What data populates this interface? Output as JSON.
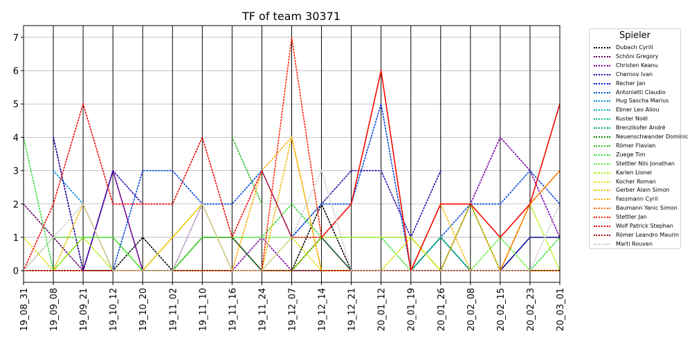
{
  "chart_data": {
    "type": "line",
    "title": "TF of team 30371",
    "xlabel": "",
    "ylabel": "",
    "ylim": [
      -0.35,
      7.35
    ],
    "yticks": [
      0,
      1,
      2,
      3,
      4,
      5,
      6,
      7
    ],
    "grid": true,
    "legend_title": "Spieler",
    "legend_position": "outside-right",
    "x": [
      "19_08_31",
      "19_09_08",
      "19_09_21",
      "19_10_12",
      "19_10_20",
      "19_11_02",
      "19_11_10",
      "19_11_16",
      "19_11_24",
      "19_12_07",
      "19_12_14",
      "19_12_21",
      "20_01_12",
      "20_01_19",
      "20_01_26",
      "20_02_08",
      "20_02_15",
      "20_02_23",
      "20_03_01"
    ],
    "series": [
      {
        "name": "Dubach Cyrill",
        "color": "#000000",
        "values": [
          null,
          4,
          0,
          0,
          1,
          0,
          1,
          1,
          0,
          0,
          2,
          0,
          0,
          0,
          0,
          0,
          0,
          1,
          1
        ]
      },
      {
        "name": "Schöni Gregory",
        "color": "#5a005a",
        "values": [
          2,
          1,
          0,
          3,
          0,
          0,
          1,
          1,
          0,
          0,
          1,
          0,
          0,
          0,
          0,
          0,
          0,
          0,
          0
        ]
      },
      {
        "name": "Christen Keanu",
        "color": "#7a00a8",
        "values": [
          0,
          0,
          0,
          3,
          0,
          0,
          2,
          0,
          1,
          0,
          1,
          0,
          0,
          0,
          0,
          2,
          4,
          3,
          1
        ]
      },
      {
        "name": "Chernov Ivan",
        "color": "#2a00a8",
        "values": [
          null,
          4,
          0,
          3,
          2,
          null,
          null,
          null,
          null,
          1,
          2,
          3,
          3,
          1,
          3,
          null,
          null,
          null,
          null
        ]
      },
      {
        "name": "Recher Jan",
        "color": "#0000d0",
        "values": [
          0,
          0,
          0,
          0,
          0,
          0,
          0,
          0,
          0,
          0,
          0,
          0,
          0,
          0,
          0,
          0,
          0,
          1,
          1
        ]
      },
      {
        "name": "Antonietti Claudio",
        "color": "#0044dd",
        "values": [
          0,
          0,
          0,
          0,
          3,
          3,
          2,
          2,
          3,
          1,
          2,
          2,
          5,
          0,
          1,
          2,
          2,
          3,
          2
        ]
      },
      {
        "name": "Hug Sascha Marius",
        "color": "#0088dd",
        "values": [
          null,
          3,
          2,
          0,
          0,
          0,
          0,
          0,
          0,
          0,
          0,
          0,
          0,
          0,
          1,
          0,
          0,
          0,
          0
        ]
      },
      {
        "name": "Ebner Leo Aliou",
        "color": "#00aabb",
        "values": [
          0,
          0,
          0,
          0,
          0,
          0,
          0,
          0,
          0,
          0,
          0,
          0,
          0,
          0,
          1,
          0,
          0,
          0,
          0
        ]
      },
      {
        "name": "Kuster Noël",
        "color": "#00bb88",
        "values": [
          0,
          0,
          0,
          0,
          0,
          0,
          0,
          0,
          0,
          0,
          0,
          0,
          0,
          0,
          1,
          0,
          0,
          0,
          0
        ]
      },
      {
        "name": "Brenzikofer André",
        "color": "#00a060",
        "values": [
          0,
          0,
          0,
          0,
          0,
          0,
          0,
          0,
          0,
          0,
          0,
          0,
          0,
          0,
          1,
          0,
          0,
          0,
          0
        ]
      },
      {
        "name": "Neuenschwander Dominic",
        "color": "#008800",
        "values": [
          0,
          1,
          1,
          1,
          0,
          0,
          1,
          1,
          0,
          0,
          1,
          0,
          0,
          0,
          0,
          2,
          0,
          0,
          0
        ]
      },
      {
        "name": "Römer Flavian",
        "color": "#22bb22",
        "values": [
          null,
          null,
          null,
          null,
          null,
          null,
          null,
          4,
          2,
          null,
          null,
          null,
          null,
          null,
          null,
          null,
          null,
          null,
          null
        ]
      },
      {
        "name": "Zuege Tim",
        "color": "#33dd33",
        "values": [
          4,
          0,
          1,
          1,
          0,
          0,
          1,
          1,
          1,
          2,
          1,
          1,
          1,
          0,
          0,
          2,
          0,
          0,
          1
        ]
      },
      {
        "name": "Stettler Nils Jonathan",
        "color": "#55ee33",
        "values": [
          0,
          1,
          1,
          1,
          0,
          0,
          1,
          1,
          1,
          1,
          1,
          1,
          1,
          1,
          0,
          0,
          1,
          0,
          0
        ]
      },
      {
        "name": "Karlen Lionel",
        "color": "#aaee00",
        "values": [
          0,
          0,
          1,
          0,
          0,
          0,
          0,
          0,
          0,
          0,
          1,
          1,
          1,
          1,
          0,
          0,
          0,
          2,
          0
        ]
      },
      {
        "name": "Kocher Roman",
        "color": "#dddd00",
        "values": [
          1,
          0,
          0,
          0,
          0,
          1,
          2,
          0,
          0,
          1,
          0,
          0,
          0,
          1,
          0,
          0,
          0,
          0,
          0
        ]
      },
      {
        "name": "Gerber Alain Simon",
        "color": "#eebb00",
        "values": [
          0,
          0,
          2,
          0,
          0,
          1,
          2,
          0,
          0,
          4,
          0,
          0,
          0,
          0,
          2,
          0,
          0,
          0,
          0
        ]
      },
      {
        "name": "Fassmann Cyril",
        "color": "#ffaa00",
        "values": [
          0,
          0,
          0,
          0,
          0,
          0,
          0,
          0,
          3,
          4,
          0,
          0,
          0,
          0,
          0,
          2,
          0,
          2,
          3
        ]
      },
      {
        "name": "Baumann Yanic Simon",
        "color": "#ff6600",
        "values": [
          0,
          0,
          0,
          0,
          0,
          0,
          0,
          0,
          0,
          0,
          0,
          0,
          0,
          0,
          0,
          0,
          0,
          2,
          3
        ]
      },
      {
        "name": "Stettler Jan",
        "color": "#ff2200",
        "values": [
          0,
          0,
          0,
          0,
          0,
          0,
          0,
          0,
          0,
          7,
          1,
          2,
          6,
          0,
          2,
          2,
          1,
          2,
          5
        ]
      },
      {
        "name": "Wolf Patrick Stephan",
        "color": "#ee0000",
        "values": [
          0,
          2,
          5,
          2,
          2,
          2,
          4,
          1,
          3,
          1,
          1,
          2,
          6,
          0,
          2,
          2,
          1,
          2,
          5
        ]
      },
      {
        "name": "Römer Leandro Maurin",
        "color": "#aa0000",
        "values": [
          0,
          0,
          0,
          0,
          0,
          0,
          0,
          0,
          0,
          0,
          0,
          0,
          0,
          0,
          0,
          0,
          0,
          0,
          0
        ]
      },
      {
        "name": "Marti Rouven",
        "color": "#cccccc",
        "values": [
          0,
          1,
          2,
          0,
          0,
          0,
          2,
          0,
          0,
          1,
          3,
          0,
          0,
          0,
          0,
          0,
          0,
          0,
          2
        ]
      }
    ]
  }
}
